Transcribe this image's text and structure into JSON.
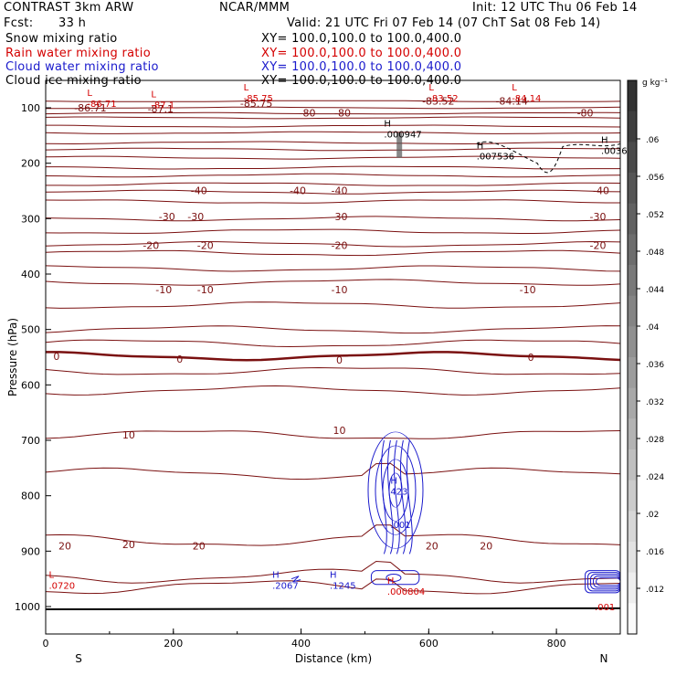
{
  "header": {
    "title_left": "CONTRAST  3km ARW",
    "title_center": "NCAR/MMM",
    "init": "Init: 12 UTC Thu 06 Feb 14",
    "fcst_label": "Fcst:",
    "fcst_value": "33 h",
    "valid": "Valid: 21 UTC Fri 07 Feb 14 (07 ChT Sat 08 Feb 14)"
  },
  "fields": [
    {
      "name": "Snow mixing ratio",
      "xy": "XY= 100.0,100.0 to 100.0,400.0",
      "color": "#000000"
    },
    {
      "name": "Rain water mixing ratio",
      "xy": "XY= 100.0,100.0 to 100.0,400.0",
      "color": "#d40000"
    },
    {
      "name": "Cloud water mixing ratio",
      "xy": "XY= 100.0,100.0 to 100.0,400.0",
      "color": "#1a1acc"
    },
    {
      "name": "Cloud ice mixing ratio",
      "xy": "XY= 100.0,100.0 to 100.0,400.0",
      "color": "#000000"
    }
  ],
  "chart_data": {
    "type": "line",
    "xlabel": "Distance (km)",
    "ylabel": "Pressure (hPa)",
    "xlim": [
      0,
      900
    ],
    "ylim": [
      1050,
      60
    ],
    "x_ticks": [
      0,
      200,
      400,
      600,
      800
    ],
    "y_ticks": [
      100,
      200,
      300,
      400,
      500,
      600,
      700,
      800,
      900,
      1000
    ],
    "x_end_labels": {
      "left": "S",
      "right": "N"
    },
    "colorbar": {
      "unit": "g kg⁻¹",
      "ticks": [
        ".06",
        ".056",
        ".052",
        ".048",
        ".044",
        ".04",
        ".036",
        ".032",
        ".028",
        ".024",
        ".02",
        ".016",
        ".012"
      ]
    },
    "temperature_contour_labels": [
      {
        "text": "-86.71",
        "x": 70,
        "p": 100
      },
      {
        "text": "-87.1",
        "x": 180,
        "p": 102
      },
      {
        "text": "-85.75",
        "x": 330,
        "p": 92
      },
      {
        "text": "-83.52",
        "x": 615,
        "p": 88
      },
      {
        "text": "-84.14",
        "x": 730,
        "p": 88
      },
      {
        "text": "-80",
        "x": 410,
        "p": 109
      },
      {
        "text": "-80",
        "x": 465,
        "p": 109
      },
      {
        "text": "-80",
        "x": 845,
        "p": 109
      },
      {
        "text": "-40",
        "x": 240,
        "p": 249
      },
      {
        "text": "-40",
        "x": 395,
        "p": 249
      },
      {
        "text": "-40",
        "x": 460,
        "p": 249
      },
      {
        "text": "-40",
        "x": 870,
        "p": 249
      },
      {
        "text": "-30",
        "x": 190,
        "p": 296
      },
      {
        "text": "-30",
        "x": 235,
        "p": 296
      },
      {
        "text": "-30",
        "x": 460,
        "p": 296
      },
      {
        "text": "-30",
        "x": 865,
        "p": 296
      },
      {
        "text": "-20",
        "x": 165,
        "p": 348
      },
      {
        "text": "-20",
        "x": 250,
        "p": 348
      },
      {
        "text": "-20",
        "x": 460,
        "p": 348
      },
      {
        "text": "-20",
        "x": 865,
        "p": 348
      },
      {
        "text": "-10",
        "x": 185,
        "p": 428
      },
      {
        "text": "-10",
        "x": 250,
        "p": 428
      },
      {
        "text": "-10",
        "x": 460,
        "p": 428
      },
      {
        "text": "-10",
        "x": 755,
        "p": 428
      },
      {
        "text": "0",
        "x": 17,
        "p": 548
      },
      {
        "text": "0",
        "x": 210,
        "p": 553
      },
      {
        "text": "0",
        "x": 460,
        "p": 555
      },
      {
        "text": "0",
        "x": 760,
        "p": 550
      },
      {
        "text": "10",
        "x": 130,
        "p": 690
      },
      {
        "text": "10",
        "x": 460,
        "p": 682
      },
      {
        "text": "20",
        "x": 30,
        "p": 890
      },
      {
        "text": "20",
        "x": 130,
        "p": 888
      },
      {
        "text": "20",
        "x": 240,
        "p": 890
      },
      {
        "text": "20",
        "x": 605,
        "p": 890
      },
      {
        "text": "20",
        "x": 690,
        "p": 890
      }
    ],
    "extrema_labels": [
      {
        "mark": "L",
        "value": "-86.71",
        "x": 65,
        "p": 85
      },
      {
        "mark": "L",
        "value": "-87.1",
        "x": 165,
        "p": 88
      },
      {
        "mark": "L",
        "value": "-85.75",
        "x": 310,
        "p": 75
      },
      {
        "mark": "L",
        "value": "-83.52",
        "x": 600,
        "p": 75
      },
      {
        "mark": "L",
        "value": "-84.14",
        "x": 730,
        "p": 75
      },
      {
        "mark": "H",
        "value": ".000947",
        "x": 530,
        "p": 140
      },
      {
        "mark": "H",
        "value": ".007536",
        "x": 675,
        "p": 180
      },
      {
        "mark": "H",
        "value": ".0036",
        "x": 870,
        "p": 170
      },
      {
        "mark": "H",
        "value": "423",
        "x": 540,
        "p": 785
      },
      {
        "mark": "",
        "value": ".001",
        "x": 540,
        "p": 845
      },
      {
        "mark": "L",
        "value": ".0720",
        "x": 5,
        "p": 955
      },
      {
        "mark": "H",
        "value": ".2067",
        "x": 355,
        "p": 955
      },
      {
        "mark": "H",
        "value": ".1245",
        "x": 445,
        "p": 955
      },
      {
        "mark": "H",
        "value": ".000804",
        "x": 535,
        "p": 965
      },
      {
        "mark": "",
        "value": ".001",
        "x": 860,
        "p": 993
      }
    ]
  }
}
